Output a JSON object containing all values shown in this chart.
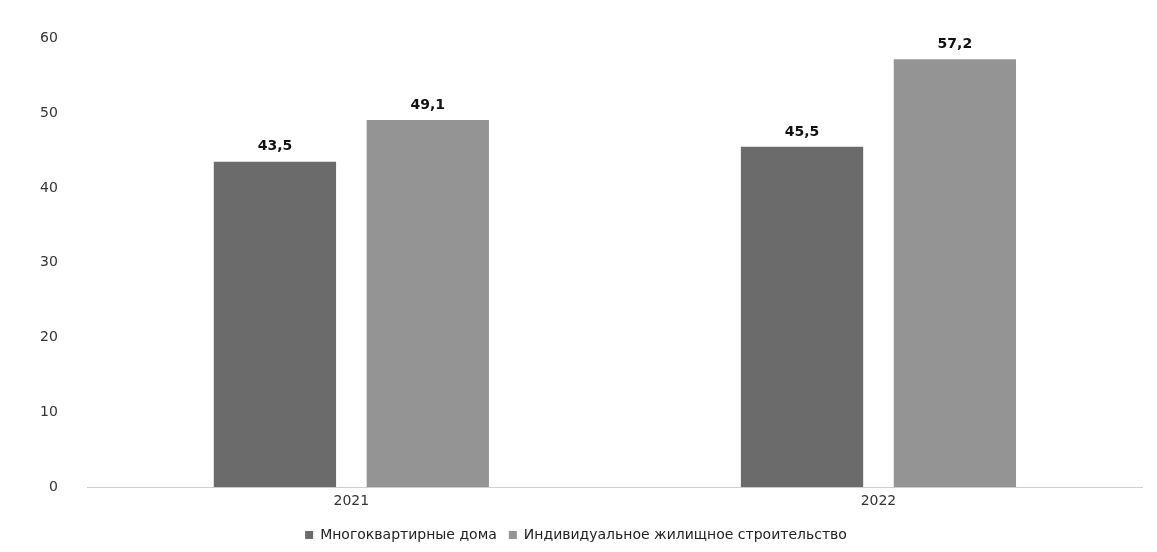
{
  "chart_data": {
    "type": "bar",
    "categories": [
      "2021",
      "2022"
    ],
    "series": [
      {
        "name": "Многоквартирные дома",
        "color": "#6b6b6b",
        "values": [
          43.5,
          45.5
        ],
        "value_labels": [
          "43,5",
          "45,5"
        ]
      },
      {
        "name": "Индивидуальное жилищное строительство",
        "color": "#949494",
        "values": [
          49.1,
          57.2
        ],
        "value_labels": [
          "49,1",
          "57,2"
        ]
      }
    ],
    "ylim": [
      0,
      60
    ],
    "yticks": [
      0,
      10,
      20,
      30,
      40,
      50,
      60
    ],
    "grid": false,
    "legend": "bottom"
  }
}
